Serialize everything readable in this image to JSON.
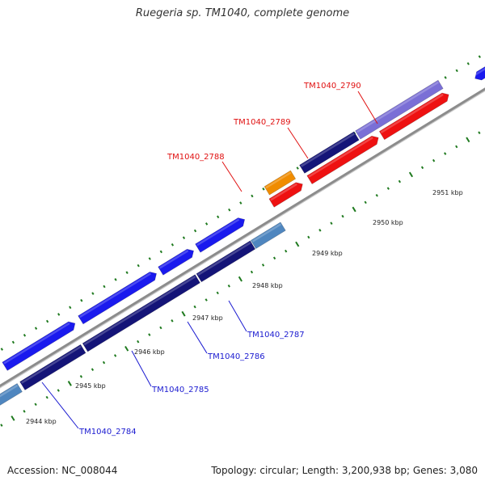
{
  "title": "Ruegeria sp. TM1040, complete genome",
  "footer": {
    "accession": "Accession: NC_008044",
    "stats": "Topology: circular; Length: 3,200,938 bp; Genes: 3,080"
  },
  "colors": {
    "backbone": "#8c8c8c",
    "tick": "#1f7a1f",
    "forward_cds": "#1a1aee",
    "reverse_cds": "#141478",
    "highlight_orange": "#f08c00",
    "highlight_red": "#ee1111",
    "highlight_lavender": "#7a6fd6",
    "light_blue": "#4f86bf",
    "slate": "#4b4a8e",
    "label_blue": "#1a1ad0",
    "label_red": "#e01010"
  },
  "scale_labels": [
    "2944 kbp",
    "2945 kbp",
    "2946 kbp",
    "2947 kbp",
    "2948 kbp",
    "2949 kbp",
    "2950 kbp",
    "2951 kbp"
  ],
  "gene_labels": [
    {
      "name": "TM1040_2784",
      "color": "label_blue"
    },
    {
      "name": "TM1040_2785",
      "color": "label_blue"
    },
    {
      "name": "TM1040_2786",
      "color": "label_blue"
    },
    {
      "name": "TM1040_2787",
      "color": "label_blue"
    },
    {
      "name": "TM1040_2788",
      "color": "label_red"
    },
    {
      "name": "TM1040_2789",
      "color": "label_red"
    },
    {
      "name": "TM1040_2790",
      "color": "label_red"
    }
  ]
}
